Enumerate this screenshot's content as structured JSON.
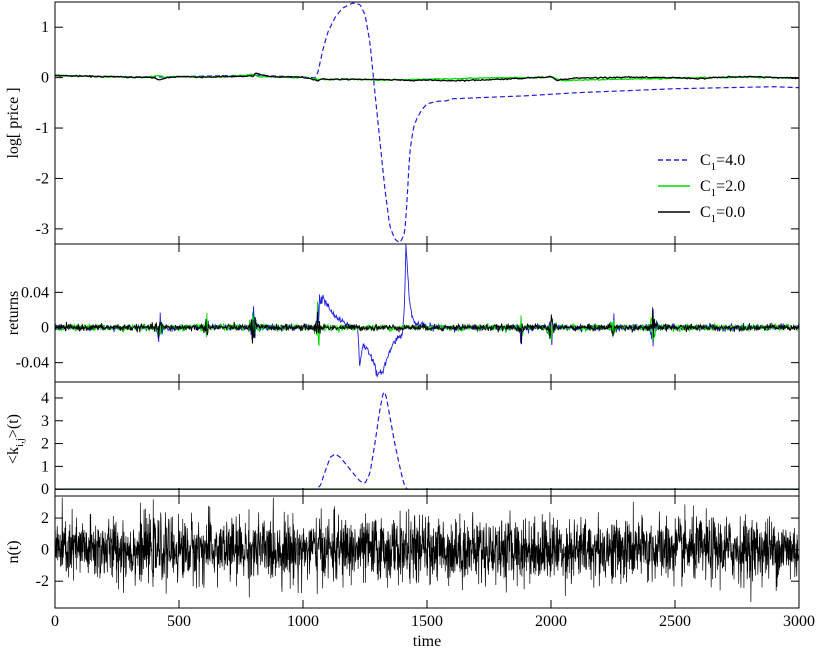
{
  "chart_data": [
    {
      "type": "line",
      "panel": "log-price",
      "ylabel": "log[ price ]",
      "xlim": [
        0,
        3000
      ],
      "ylim": [
        -3.3,
        1.5
      ],
      "yticks": [
        1,
        0,
        -1,
        -2,
        -3
      ],
      "ytick_labels": [
        "1",
        "0",
        "-1",
        "-2",
        "-3"
      ],
      "legend": {
        "placement": "right",
        "entries": [
          {
            "prefix": "C",
            "sub": "1",
            "suffix": "=4.0",
            "series": "c4"
          },
          {
            "prefix": "C",
            "sub": "1",
            "suffix": "=2.0",
            "series": "c2"
          },
          {
            "prefix": "C",
            "sub": "1",
            "suffix": "=0.0",
            "series": "c0"
          }
        ]
      },
      "series": [
        {
          "id": "c4",
          "color": "#1f1fe0",
          "dash": true,
          "x": [
            0,
            400,
            800,
            1050,
            1060,
            1080,
            1100,
            1130,
            1160,
            1200,
            1230,
            1250,
            1270,
            1290,
            1310,
            1330,
            1350,
            1370,
            1390,
            1410,
            1420,
            1430,
            1445,
            1460,
            1480,
            1500,
            1540,
            1580,
            1600,
            1700,
            1800,
            1900,
            2000,
            2100,
            2200,
            2300,
            2400,
            2500,
            2600,
            2700,
            2800,
            2900,
            3000
          ],
          "y": [
            0.04,
            0.01,
            0.05,
            0.0,
            0.1,
            0.55,
            0.9,
            1.2,
            1.38,
            1.48,
            1.45,
            1.25,
            0.7,
            -0.3,
            -1.25,
            -2.2,
            -2.95,
            -3.2,
            -3.28,
            -3.1,
            -2.4,
            -1.5,
            -1.0,
            -0.8,
            -0.63,
            -0.52,
            -0.47,
            -0.46,
            -0.42,
            -0.4,
            -0.38,
            -0.36,
            -0.33,
            -0.3,
            -0.28,
            -0.26,
            -0.24,
            -0.22,
            -0.21,
            -0.2,
            -0.19,
            -0.18,
            -0.2
          ]
        },
        {
          "id": "c2",
          "color": "#00dd00",
          "dash": false,
          "x": [
            0,
            100,
            200,
            300,
            400,
            420,
            440,
            500,
            600,
            700,
            800,
            820,
            900,
            1000,
            1100,
            1200,
            1300,
            1400,
            1500,
            1600,
            1700,
            1800,
            1900,
            2000,
            2050,
            2100,
            2200,
            2300,
            2400,
            2500,
            2600,
            2700,
            2800,
            2900,
            3000
          ],
          "y": [
            0.05,
            0.03,
            0.02,
            0.01,
            0.02,
            0.05,
            0.0,
            0.03,
            0.01,
            0.02,
            0.06,
            0.02,
            0.01,
            0.0,
            -0.04,
            -0.03,
            -0.05,
            -0.04,
            -0.03,
            -0.02,
            -0.01,
            0.0,
            0.0,
            0.01,
            -0.06,
            -0.05,
            -0.04,
            -0.03,
            -0.02,
            -0.01,
            0.0,
            0.0,
            0.01,
            0.0,
            -0.01
          ]
        },
        {
          "id": "c0",
          "color": "#000000",
          "dash": false,
          "x": [
            0,
            100,
            200,
            300,
            400,
            420,
            450,
            500,
            600,
            700,
            800,
            810,
            850,
            900,
            1000,
            1060,
            1080,
            1100,
            1200,
            1300,
            1400,
            1500,
            1600,
            1700,
            1800,
            1900,
            2000,
            2020,
            2100,
            2200,
            2300,
            2400,
            2500,
            2600,
            2700,
            2800,
            2900,
            3000
          ],
          "y": [
            0.04,
            0.03,
            0.02,
            0.01,
            0.0,
            -0.05,
            0.0,
            0.02,
            0.01,
            0.02,
            0.03,
            0.09,
            0.03,
            0.01,
            0.01,
            -0.06,
            -0.02,
            -0.04,
            -0.03,
            -0.04,
            -0.05,
            -0.05,
            -0.06,
            -0.05,
            -0.03,
            -0.01,
            0.02,
            -0.05,
            -0.01,
            0.0,
            0.01,
            0.0,
            0.0,
            -0.02,
            0.01,
            0.02,
            0.0,
            -0.01
          ]
        }
      ]
    },
    {
      "type": "line",
      "panel": "returns",
      "ylabel": "returns",
      "xlim": [
        0,
        3000
      ],
      "ylim": [
        -0.062,
        0.095
      ],
      "yticks": [
        0.04,
        0,
        -0.04
      ],
      "ytick_labels": [
        "0.04",
        "0",
        "-0.04"
      ],
      "noise": {
        "amplitude": 0.003,
        "bursts": [
          [
            420,
            0.018
          ],
          [
            800,
            0.03
          ],
          [
            1060,
            0.025
          ],
          [
            2000,
            0.022
          ],
          [
            2410,
            0.025
          ],
          [
            1880,
            0.012
          ],
          [
            2250,
            0.012
          ],
          [
            610,
            0.01
          ]
        ]
      },
      "series": [
        {
          "id": "c4",
          "color": "#1f1fe0",
          "x": [
            0,
            1050,
            1060,
            1070,
            1080,
            1090,
            1100,
            1120,
            1150,
            1180,
            1200,
            1220,
            1225,
            1228,
            1240,
            1260,
            1280,
            1300,
            1320,
            1340,
            1360,
            1380,
            1400,
            1410,
            1415,
            1420,
            1430,
            1440,
            1450,
            1470,
            1500,
            1600,
            3000
          ],
          "y": [
            0,
            0,
            0.02,
            0.03,
            0.035,
            0.028,
            0.025,
            0.015,
            0.008,
            0.003,
            0.001,
            0,
            -0.02,
            -0.045,
            -0.02,
            -0.025,
            -0.035,
            -0.055,
            -0.05,
            -0.035,
            -0.02,
            -0.012,
            -0.008,
            0.03,
            0.095,
            0.07,
            0.03,
            0.012,
            0.005,
            0.003,
            0.001,
            0,
            0
          ]
        },
        {
          "id": "c2",
          "color": "#00dd00",
          "x": [
            0,
            3000
          ],
          "y": [
            0,
            0
          ]
        },
        {
          "id": "c0",
          "color": "#000000",
          "x": [
            0,
            3000
          ],
          "y": [
            0,
            0
          ]
        }
      ]
    },
    {
      "type": "line",
      "panel": "k-ij",
      "ylabel_prefix": "<k",
      "ylabel_sub": "i,j",
      "ylabel_suffix": ">(t)",
      "xlim": [
        0,
        3000
      ],
      "ylim": [
        -0.3,
        4.7
      ],
      "yticks": [
        4,
        3,
        2,
        1,
        0
      ],
      "ytick_labels": [
        "4",
        "3",
        "2",
        "1",
        "0"
      ],
      "series": [
        {
          "id": "c4",
          "color": "#1f1fe0",
          "dash": true,
          "x": [
            0,
            1050,
            1070,
            1090,
            1110,
            1130,
            1150,
            1180,
            1210,
            1230,
            1250,
            1270,
            1290,
            1310,
            1325,
            1335,
            1350,
            1370,
            1390,
            1405,
            1415,
            1420,
            3000
          ],
          "y": [
            0,
            0,
            0.15,
            0.8,
            1.4,
            1.55,
            1.4,
            1.0,
            0.6,
            0.35,
            0.25,
            0.7,
            2.0,
            3.5,
            4.3,
            4.1,
            3.2,
            2.0,
            1.0,
            0.3,
            0.05,
            0,
            0
          ]
        },
        {
          "id": "c2",
          "color": "#00dd00",
          "dash": false,
          "x": [
            0,
            3000
          ],
          "y": [
            0,
            0
          ]
        },
        {
          "id": "c0",
          "color": "#000000",
          "dash": false,
          "x": [
            0,
            3000
          ],
          "y": [
            0,
            0
          ]
        }
      ]
    },
    {
      "type": "line",
      "panel": "n-t",
      "ylabel": "n(t)",
      "xlabel": "time",
      "xlim": [
        0,
        3000
      ],
      "ylim": [
        -3.7,
        3.4
      ],
      "yticks": [
        2,
        0,
        -2
      ],
      "ytick_labels": [
        "2",
        "0",
        "-2"
      ],
      "xticks": [
        0,
        500,
        1000,
        1500,
        2000,
        2500,
        3000
      ],
      "xtick_labels": [
        "0",
        "500",
        "1000",
        "1500",
        "2000",
        "2500",
        "3000"
      ],
      "noise": {
        "stdev": 1.0,
        "points": 3000
      },
      "series": [
        {
          "id": "noise",
          "color": "#000000"
        }
      ]
    }
  ]
}
